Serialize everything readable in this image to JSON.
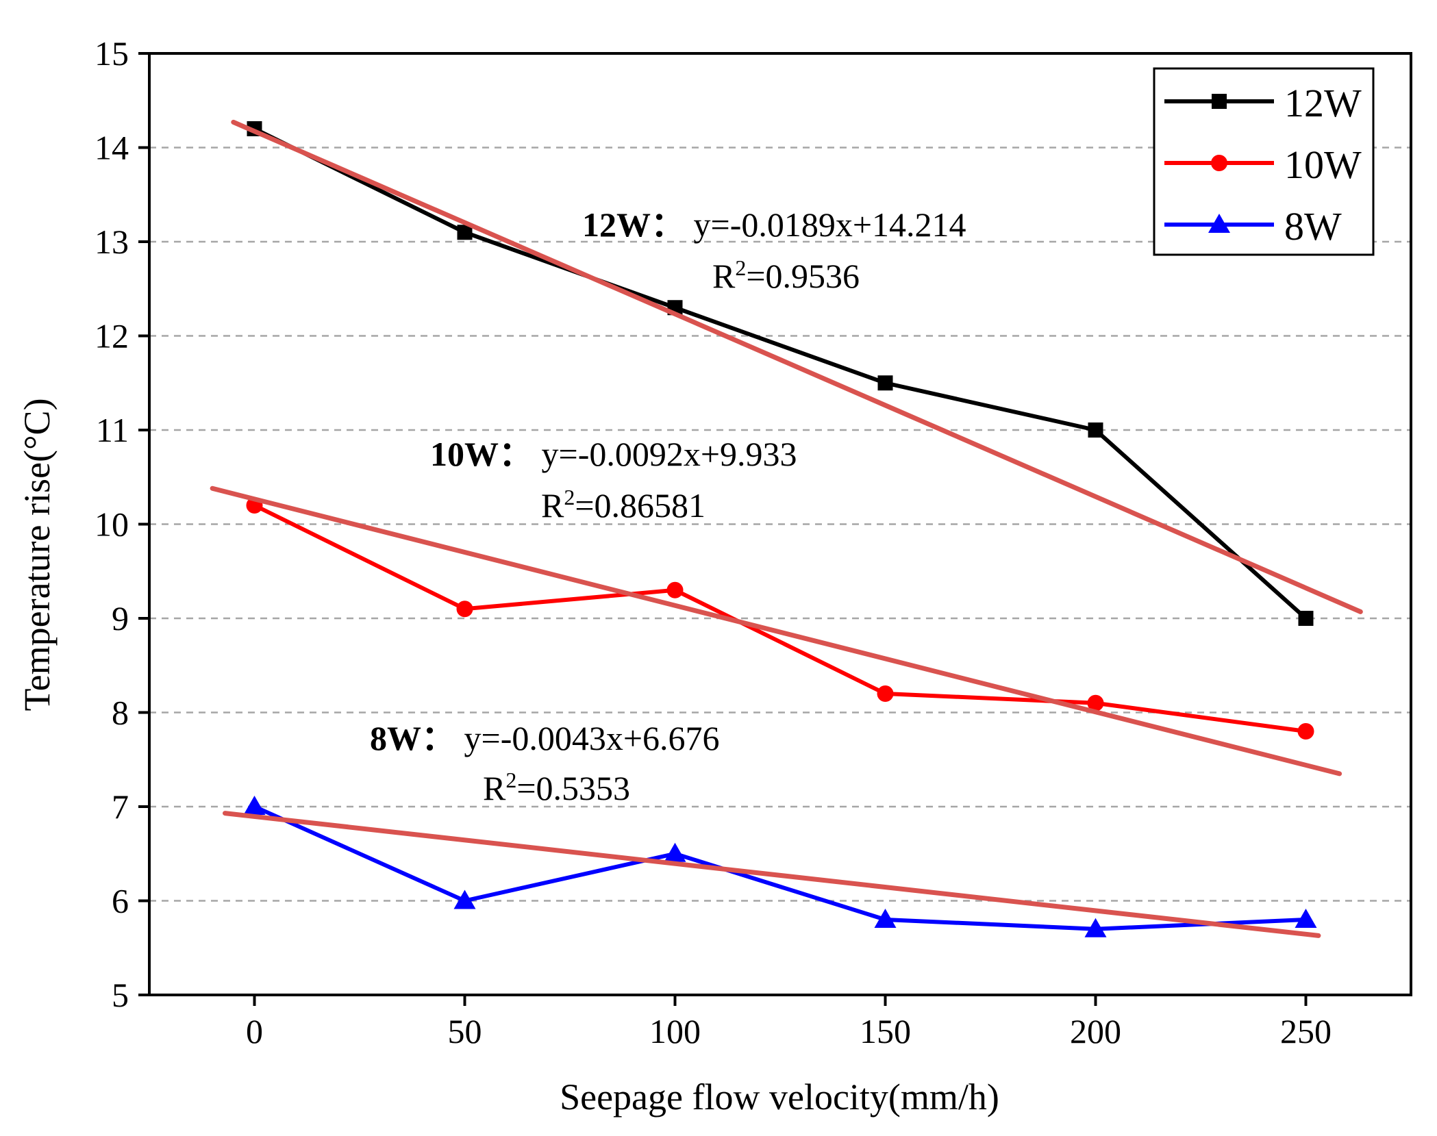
{
  "chart_data": {
    "type": "line",
    "xlabel": "Seepage flow velocity(mm/h)",
    "ylabel": "Temperature rise(°C)",
    "xlim": [
      -25,
      275
    ],
    "ylim": [
      5,
      15
    ],
    "x_ticks": [
      0,
      50,
      100,
      150,
      200,
      250
    ],
    "y_ticks": [
      5,
      6,
      7,
      8,
      9,
      10,
      11,
      12,
      13,
      14,
      15
    ],
    "grid": "horizontal dashed",
    "legend_position": "top-right",
    "x": [
      0,
      50,
      100,
      150,
      200,
      250
    ],
    "series": [
      {
        "name": "12W",
        "color": "#000000",
        "marker": "square",
        "values": [
          14.2,
          13.1,
          12.3,
          11.5,
          11.0,
          9.0
        ]
      },
      {
        "name": "10W",
        "color": "#ff0000",
        "marker": "circle",
        "values": [
          10.2,
          9.1,
          9.3,
          8.2,
          8.1,
          7.8
        ]
      },
      {
        "name": "8W",
        "color": "#0000ff",
        "marker": "triangle",
        "values": [
          7.0,
          6.0,
          6.5,
          5.8,
          5.7,
          5.8
        ]
      }
    ],
    "fit_lines": [
      {
        "name": "12W fit",
        "color": "#d9534f",
        "x_range": [
          -5,
          263
        ],
        "y_range": [
          14.27,
          9.07
        ]
      },
      {
        "name": "10W fit",
        "color": "#d9534f",
        "x_range": [
          -10,
          258
        ],
        "y_range": [
          10.38,
          7.35
        ]
      },
      {
        "name": "8W fit",
        "color": "#d9534f",
        "x_range": [
          -7,
          253
        ],
        "y_range": [
          6.93,
          5.63
        ]
      }
    ],
    "annotations": [
      {
        "label": "12W：",
        "equation": "y=-0.0189x+14.214",
        "r_prefix": "R",
        "r_sup": "2",
        "r_value": "=0.9536"
      },
      {
        "label": "10W：",
        "equation": "y=-0.0092x+9.933",
        "r_prefix": "R",
        "r_sup": "2",
        "r_value": "=0.86581"
      },
      {
        "label": "8W：",
        "equation": "y=-0.0043x+6.676",
        "r_prefix": "R",
        "r_sup": "2",
        "r_value": "=0.5353"
      }
    ]
  }
}
